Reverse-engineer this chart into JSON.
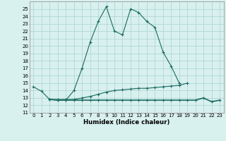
{
  "xlabel": "Humidex (Indice chaleur)",
  "background_color": "#d8f0ee",
  "grid_color": "#b0d8d4",
  "line_color": "#1a6b60",
  "x": [
    0,
    1,
    2,
    3,
    4,
    5,
    6,
    7,
    8,
    9,
    10,
    11,
    12,
    13,
    14,
    15,
    16,
    17,
    18,
    19,
    20,
    21,
    22,
    23
  ],
  "line1": [
    14.5,
    13.9,
    12.8,
    12.7,
    12.7,
    14.0,
    17.0,
    20.5,
    23.3,
    25.3,
    22.0,
    21.5,
    25.0,
    24.5,
    23.3,
    22.5,
    19.2,
    17.3,
    15.0,
    null,
    null,
    null,
    null,
    null
  ],
  "line2": [
    null,
    null,
    12.8,
    12.8,
    12.8,
    12.8,
    13.0,
    13.2,
    13.5,
    13.8,
    14.0,
    14.1,
    14.2,
    14.3,
    14.3,
    14.4,
    14.5,
    14.6,
    14.7,
    15.0,
    null,
    null,
    null,
    null
  ],
  "line3": [
    null,
    null,
    12.8,
    12.7,
    12.7,
    12.7,
    12.7,
    12.7,
    12.7,
    12.7,
    12.7,
    12.7,
    12.7,
    12.7,
    12.7,
    12.7,
    12.7,
    12.7,
    12.7,
    12.7,
    12.7,
    13.0,
    12.5,
    12.7
  ],
  "ylim_min": 11,
  "ylim_max": 26,
  "xlim_min": -0.5,
  "xlim_max": 23.5,
  "yticks": [
    11,
    12,
    13,
    14,
    15,
    16,
    17,
    18,
    19,
    20,
    21,
    22,
    23,
    24,
    25
  ],
  "xticks": [
    0,
    1,
    2,
    3,
    4,
    5,
    6,
    7,
    8,
    9,
    10,
    11,
    12,
    13,
    14,
    15,
    16,
    17,
    18,
    19,
    20,
    21,
    22,
    23
  ],
  "tick_fontsize": 5.0,
  "xlabel_fontsize": 6.2
}
